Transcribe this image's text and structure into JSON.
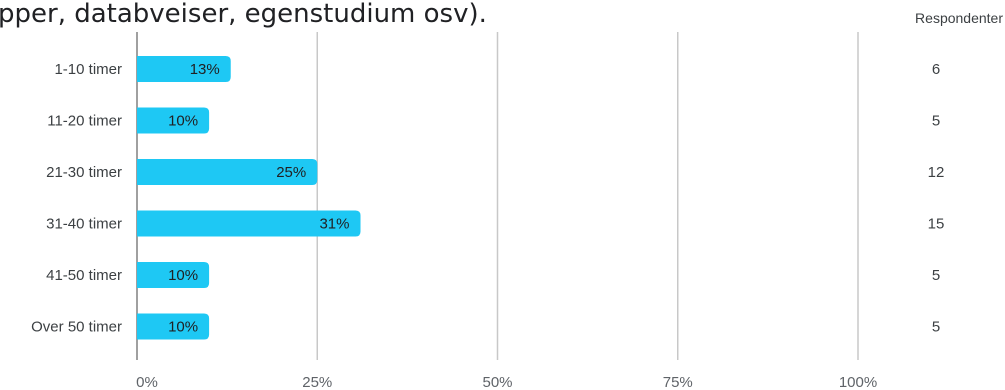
{
  "question": {
    "text_fragment": "pper, databveiser, egenstudium osv)."
  },
  "count_header": "Respondenter",
  "chart_data": {
    "type": "bar",
    "orientation": "horizontal",
    "categories": [
      "1-10 timer",
      "11-20 timer",
      "21-30 timer",
      "31-40 timer",
      "41-50 timer",
      "Over 50 timer"
    ],
    "values": [
      13,
      10,
      25,
      31,
      10,
      10
    ],
    "value_labels": [
      "13%",
      "10%",
      "25%",
      "31%",
      "10%",
      "10%"
    ],
    "respondents": [
      "6",
      "5",
      "12",
      "15",
      "5",
      "5"
    ],
    "x_ticks": [
      {
        "value": 0,
        "label": "0%"
      },
      {
        "value": 25,
        "label": "25%"
      },
      {
        "value": 50,
        "label": "50%"
      },
      {
        "value": 75,
        "label": "75%"
      },
      {
        "value": 100,
        "label": "100%"
      }
    ],
    "xlim": [
      0,
      100
    ],
    "grid": true,
    "bar_color": "#1ec8f4",
    "title": "",
    "xlabel": "",
    "ylabel": ""
  }
}
